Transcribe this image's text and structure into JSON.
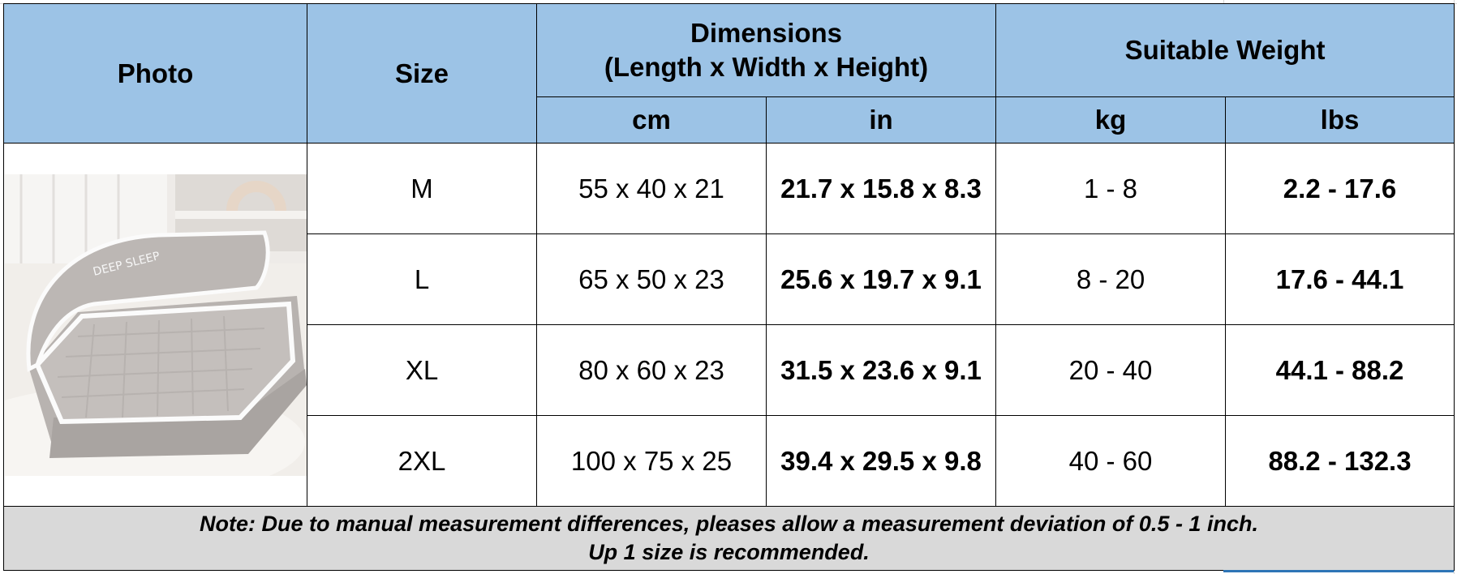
{
  "table": {
    "headers": {
      "photo": "Photo",
      "size": "Size",
      "dimensions_line1": "Dimensions",
      "dimensions_line2": "(Length x Width x Height)",
      "weight": "Suitable Weight",
      "cm": "cm",
      "in": "in",
      "kg": "kg",
      "lbs": "lbs"
    },
    "photo_text": "DEEP SLEEP",
    "rows": [
      {
        "size": "M",
        "cm": "55 x 40 x 21",
        "in": "21.7 x 15.8 x 8.3",
        "kg": "1 - 8",
        "lbs": "2.2 - 17.6"
      },
      {
        "size": "L",
        "cm": "65 x 50 x 23",
        "in": "25.6 x 19.7 x 9.1",
        "kg": "8 - 20",
        "lbs": "17.6 - 44.1"
      },
      {
        "size": "XL",
        "cm": "80 x 60 x 23",
        "in": "31.5 x 23.6 x 9.1",
        "kg": "20 - 40",
        "lbs": "44.1 - 88.2"
      },
      {
        "size": "2XL",
        "cm": "100 x 75 x 25",
        "in": "39.4 x 29.5 x 9.8",
        "kg": "40 - 60",
        "lbs": "88.2 - 132.3"
      }
    ],
    "note_line1": "Note: Due to manual measurement differences, pleases allow a measurement deviation of 0.5 - 1 inch.",
    "note_line2": "Up 1 size is recommended."
  },
  "colors": {
    "header_bg": "#9cc3e6",
    "note_bg": "#d9d9d9",
    "border": "#000000"
  }
}
